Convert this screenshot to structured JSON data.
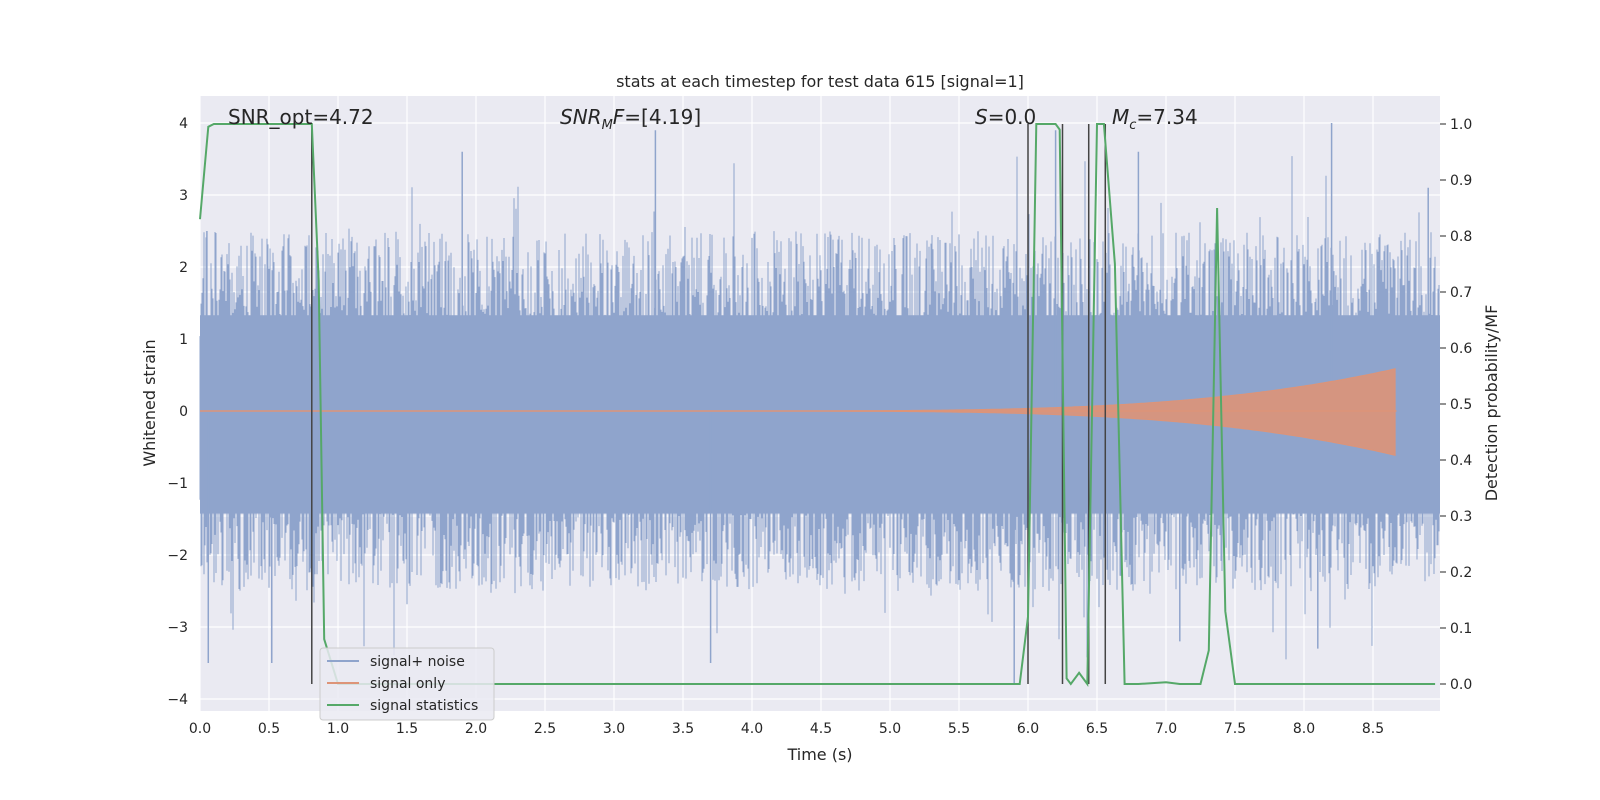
{
  "chart_data": {
    "type": "line",
    "title": "stats at each timestep for test data 615 [signal=1]",
    "xlabel": "Time (s)",
    "ylabel_left": "Whitened strain",
    "ylabel_right": "Detection probability/MF",
    "xlim": [
      0.0,
      9.0
    ],
    "ylim_left": [
      -4.2,
      4.4
    ],
    "ylim_right": [
      -0.05,
      1.045
    ],
    "x_ticks": [
      "0.0",
      "0.5",
      "1.0",
      "1.5",
      "2.0",
      "2.5",
      "3.0",
      "3.5",
      "4.0",
      "4.5",
      "5.0",
      "5.5",
      "6.0",
      "6.5",
      "7.0",
      "7.5",
      "8.0",
      "8.5"
    ],
    "y_left_ticks": [
      "4",
      "3",
      "2",
      "1",
      "0",
      "−1",
      "−2",
      "−3",
      "−4"
    ],
    "y_right_ticks": [
      "1.0",
      "0.9",
      "0.8",
      "0.7",
      "0.6",
      "0.5",
      "0.4",
      "0.3",
      "0.2",
      "0.1",
      "0.0"
    ],
    "grid": true,
    "legend_position": "lower-left",
    "annotations": {
      "snr_opt": "SNR_opt=4.72",
      "snr_mf": "SNR_MF=[4.19]",
      "s": "S=0.0",
      "mc": "M_c=7.34"
    },
    "colors": {
      "noise": "#8fa4cc",
      "signal": "#dd9478",
      "statistics": "#55a868",
      "vlines": "#444444",
      "background": "#eaeaf2",
      "grid": "#ffffff"
    },
    "series": [
      {
        "name": "signal+ noise",
        "axis": "left",
        "description_values": {
          "typical_upper_envelope": 1.4,
          "typical_lower_envelope": -1.5,
          "peak_examples": [
            {
              "x": 0.05,
              "y": 2.5
            },
            {
              "x": 0.06,
              "y": -3.5
            },
            {
              "x": 0.52,
              "y": -3.5
            },
            {
              "x": 1.9,
              "y": 3.6
            },
            {
              "x": 3.3,
              "y": 3.9
            },
            {
              "x": 3.7,
              "y": -3.5
            },
            {
              "x": 6.2,
              "y": 3.9
            },
            {
              "x": 6.8,
              "y": 3.6
            },
            {
              "x": 7.1,
              "y": -3.2
            },
            {
              "x": 8.2,
              "y": 4.0
            },
            {
              "x": 8.1,
              "y": -3.3
            },
            {
              "x": 8.9,
              "y": 3.1
            },
            {
              "x": 5.9,
              "y": -3.8
            }
          ]
        }
      },
      {
        "name": "signal only",
        "axis": "left",
        "chirp": {
          "start_x": 0.0,
          "end_x": 8.67,
          "max_amplitude": 0.55,
          "onset_x": 4.5
        }
      },
      {
        "name": "signal statistics",
        "axis": "right",
        "x": [
          0.0,
          0.06,
          0.1,
          0.2,
          0.3,
          0.4,
          0.5,
          0.6,
          0.7,
          0.8,
          0.81,
          0.86,
          0.9,
          1.0,
          1.5,
          2.0,
          2.5,
          3.0,
          3.5,
          4.0,
          4.5,
          5.0,
          5.5,
          5.94,
          6.0,
          6.06,
          6.1,
          6.2,
          6.23,
          6.28,
          6.31,
          6.37,
          6.43,
          6.5,
          6.55,
          6.63,
          6.7,
          6.8,
          7.0,
          7.1,
          7.25,
          7.31,
          7.37,
          7.43,
          7.5,
          7.6,
          8.0,
          8.5,
          8.95
        ],
        "values": [
          0.83,
          0.995,
          1.0,
          1.0,
          1.0,
          1.0,
          1.0,
          1.0,
          1.0,
          1.0,
          1.0,
          0.72,
          0.08,
          0.0,
          0.0,
          0.0,
          0.0,
          0.0,
          0.0,
          0.0,
          0.0,
          0.0,
          0.0,
          0.0,
          0.12,
          1.0,
          1.0,
          1.0,
          0.99,
          0.01,
          0.0,
          0.02,
          0.0,
          1.0,
          1.0,
          0.75,
          0.0,
          0.0,
          0.003,
          0.0,
          0.0,
          0.06,
          0.85,
          0.13,
          0.0,
          0.0,
          0.0,
          0.0,
          0.0
        ]
      }
    ],
    "vertical_lines_x": [
      0.81,
      6.0,
      6.25,
      6.44,
      6.56
    ]
  }
}
